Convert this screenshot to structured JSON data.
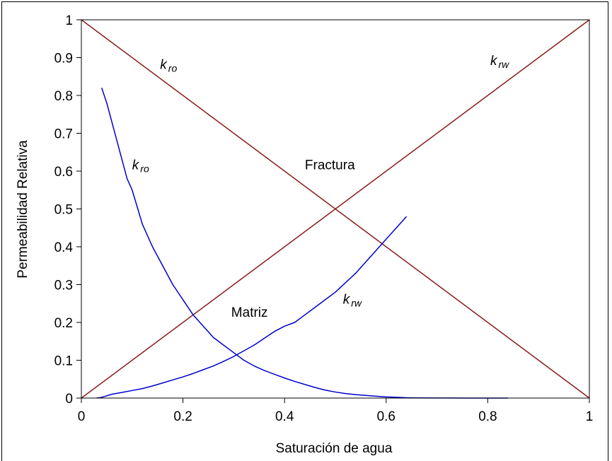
{
  "chart_data": {
    "type": "line",
    "title": "",
    "xlabel": "Saturación de agua",
    "ylabel": "Permeabilidad Relativa",
    "xlim": [
      0,
      1
    ],
    "ylim": [
      0,
      1
    ],
    "x_ticks": [
      "0",
      "0.2",
      "0.4",
      "0.6",
      "0.8",
      "1"
    ],
    "y_ticks": [
      "0",
      "0.1",
      "0.2",
      "0.3",
      "0.4",
      "0.5",
      "0.6",
      "0.7",
      "0.8",
      "0.9",
      "1"
    ],
    "grid": false,
    "legend": "none",
    "colors": {
      "fractura": "#8b1a1a",
      "matriz": "#0000cc",
      "axis": "#000000",
      "frame": "#000000"
    },
    "series": [
      {
        "x": [
          0,
          1
        ],
        "y": [
          1,
          0
        ],
        "color": "#8b1a1a"
      },
      {
        "x": [
          0,
          1
        ],
        "y": [
          0,
          1
        ],
        "color": "#8b1a1a"
      },
      {
        "x": [
          0.04,
          0.05,
          0.06,
          0.07,
          0.08,
          0.09,
          0.1,
          0.12,
          0.14,
          0.16,
          0.18,
          0.2,
          0.22,
          0.24,
          0.26,
          0.28,
          0.3,
          0.32,
          0.34,
          0.36,
          0.38,
          0.4,
          0.42,
          0.44,
          0.46,
          0.48,
          0.5,
          0.52,
          0.54,
          0.56,
          0.58,
          0.6,
          0.62,
          0.64,
          0.66,
          0.7,
          0.75,
          0.8,
          0.84
        ],
        "y": [
          0.82,
          0.78,
          0.73,
          0.68,
          0.63,
          0.58,
          0.55,
          0.46,
          0.4,
          0.35,
          0.3,
          0.26,
          0.22,
          0.19,
          0.16,
          0.14,
          0.12,
          0.1,
          0.085,
          0.073,
          0.063,
          0.053,
          0.044,
          0.036,
          0.028,
          0.021,
          0.016,
          0.012,
          0.009,
          0.007,
          0.005,
          0.003,
          0.002,
          0.001,
          0.0005,
          0.0002,
          0.0001,
          0,
          0
        ],
        "color": "#0000cc"
      },
      {
        "x": [
          0.03,
          0.04,
          0.06,
          0.08,
          0.1,
          0.12,
          0.14,
          0.16,
          0.18,
          0.2,
          0.22,
          0.24,
          0.26,
          0.28,
          0.3,
          0.32,
          0.34,
          0.36,
          0.38,
          0.4,
          0.42,
          0.44,
          0.46,
          0.48,
          0.5,
          0.52,
          0.54,
          0.56,
          0.58,
          0.6,
          0.62,
          0.64
        ],
        "y": [
          0.0,
          0.002,
          0.01,
          0.015,
          0.02,
          0.025,
          0.032,
          0.04,
          0.048,
          0.056,
          0.065,
          0.075,
          0.085,
          0.097,
          0.11,
          0.125,
          0.14,
          0.158,
          0.176,
          0.19,
          0.2,
          0.22,
          0.24,
          0.26,
          0.28,
          0.305,
          0.33,
          0.36,
          0.39,
          0.42,
          0.45,
          0.48
        ],
        "color": "#0000cc"
      }
    ],
    "annotations": [
      {
        "text": "k",
        "sub": "ro",
        "x": 0.155,
        "y": 0.87
      },
      {
        "text": "k",
        "sub": "rw",
        "x": 0.805,
        "y": 0.88
      },
      {
        "text": "k",
        "sub": "ro",
        "x": 0.1,
        "y": 0.605
      },
      {
        "text": "Fractura",
        "sub": "",
        "x": 0.44,
        "y": 0.605
      },
      {
        "text": "Matriz",
        "sub": "",
        "x": 0.295,
        "y": 0.215
      },
      {
        "text": "k",
        "sub": "rw",
        "x": 0.515,
        "y": 0.25
      }
    ]
  }
}
